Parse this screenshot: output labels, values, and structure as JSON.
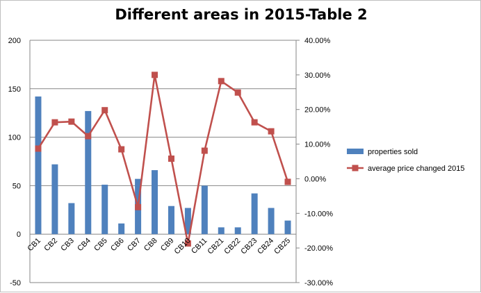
{
  "chart_data": {
    "type": "bar",
    "title": "Different areas in 2015-Table 2",
    "categories": [
      "CB1",
      "CB2",
      "CB3",
      "CB4",
      "CB5",
      "CB6",
      "CB7",
      "CB8",
      "CB9",
      "CB10",
      "CB11",
      "CB21",
      "CB22",
      "CB23",
      "CB24",
      "CB25"
    ],
    "series": [
      {
        "name": "properties sold",
        "type": "bar",
        "axis": "left",
        "color": "#4f81bd",
        "values": [
          142,
          72,
          32,
          127,
          51,
          11,
          57,
          66,
          29,
          27,
          50,
          7,
          7,
          42,
          27,
          14
        ]
      },
      {
        "name": "average price changed 2015",
        "type": "line",
        "axis": "right",
        "color": "#c0504d",
        "values": [
          0.087,
          0.163,
          0.165,
          0.123,
          0.198,
          0.085,
          -0.082,
          0.3,
          0.058,
          -0.187,
          0.081,
          0.282,
          0.249,
          0.163,
          0.137,
          -0.009
        ]
      }
    ],
    "y_left": {
      "min": -50,
      "max": 200,
      "ticks": [
        "-50",
        "0",
        "50",
        "100",
        "150",
        "200"
      ]
    },
    "y_right": {
      "min": -0.3,
      "max": 0.4,
      "ticks": [
        "-30.00%",
        "-20.00%",
        "-10.00%",
        "0.00%",
        "10.00%",
        "20.00%",
        "30.00%",
        "40.00%"
      ]
    },
    "grid": true,
    "legend_position": "right"
  }
}
